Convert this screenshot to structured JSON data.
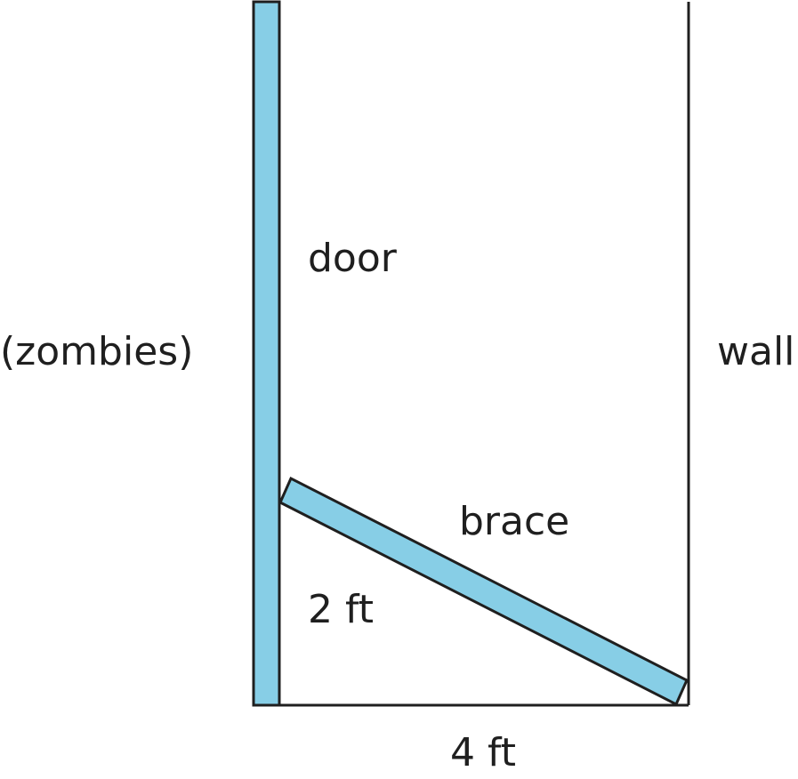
{
  "labels": {
    "outside": "(zombies)",
    "door": "door",
    "wall": "wall",
    "brace": "brace",
    "height": "2 ft",
    "base": "4 ft"
  },
  "colors": {
    "board_fill": "#87cee6",
    "stroke": "#1f1f1f",
    "text": "#1f1f1f"
  }
}
